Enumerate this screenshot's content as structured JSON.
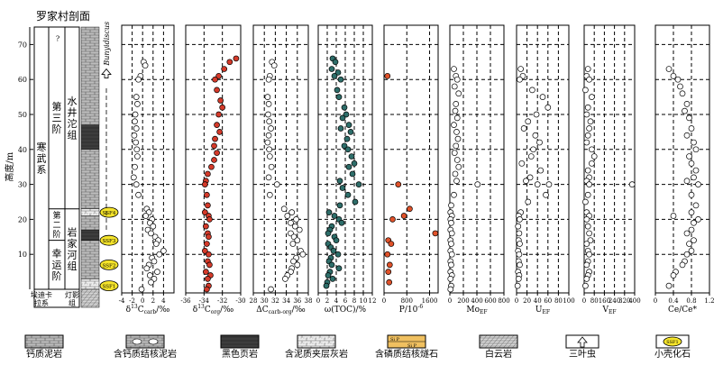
{
  "title": "罗家村剖面",
  "y_axis": {
    "label": "高度/m",
    "min": 0,
    "max": 75,
    "ticks": [
      10,
      20,
      30,
      40,
      50,
      60,
      70
    ]
  },
  "strat": {
    "series": [
      {
        "label": "寒武系",
        "from": 0,
        "to": 75
      }
    ],
    "stages": [
      {
        "label": "第三阶",
        "from": 23,
        "to": 75
      },
      {
        "label": "第二阶",
        "from": 14,
        "to": 23
      },
      {
        "label": "幸运阶",
        "from": 0,
        "to": 14
      }
    ],
    "formations": [
      {
        "label": "水井沱组",
        "from": 23,
        "to": 75
      },
      {
        "label": "岩家河组",
        "from": 0,
        "to": 23
      }
    ],
    "bottom_labels": {
      "system": "埃迪卡拉系",
      "formation": "灯影组"
    },
    "ssf_labels": [
      "SSF4",
      "SSF3",
      "SSF2",
      "SSF1"
    ],
    "biozone_label": "Bunyidiscus",
    "question_mark": "?"
  },
  "chart_data": [
    {
      "type": "scatter",
      "xlabel": "δ13Ccarb/‰",
      "xlim": [
        -4,
        6
      ],
      "xticks": [
        -4,
        -2,
        0,
        2,
        4
      ],
      "color": "#ffffff",
      "x": [
        0.2,
        0.5,
        -0.4,
        -0.8,
        -1.2,
        -1.0,
        -1.4,
        -1.5,
        -1.2,
        -1.6,
        -1.3,
        -1.1,
        -1.0,
        -1.5,
        -1.7,
        -1.2,
        -0.8,
        0.8,
        1.2,
        0.6,
        1.8,
        1.4,
        2.0,
        1.0,
        1.6,
        2.4,
        3.0,
        2.6,
        4.0,
        3.2,
        1.8,
        2.2,
        1.2,
        0.8,
        2.8,
        1.4,
        2.2,
        1.6,
        -0.2
      ],
      "y": [
        65,
        64,
        61,
        60,
        55,
        53,
        50,
        48,
        46,
        44,
        42,
        40,
        38,
        35,
        32,
        30,
        27,
        23,
        22,
        21,
        20,
        19,
        18,
        17,
        16,
        15,
        14,
        13,
        11,
        10,
        9,
        8,
        7,
        6,
        5,
        4,
        3,
        2,
        0
      ]
    },
    {
      "type": "scatter",
      "xlabel": "δ13Corg/‰",
      "xlim": [
        -36,
        -30
      ],
      "xticks": [
        -36,
        -34,
        -32,
        -30
      ],
      "color": "#d43a2a",
      "x": [
        -30.5,
        -31.2,
        -31.8,
        -32.4,
        -32.8,
        -32.6,
        -32.2,
        -32.0,
        -32.4,
        -32.6,
        -32.3,
        -32.8,
        -32.9,
        -32.6,
        -32.9,
        -33.2,
        -33.6,
        -33.8,
        -33.9,
        -33.7,
        -33.6,
        -33.9,
        -33.5,
        -33.4,
        -33.8,
        -33.6,
        -33.5,
        -33.7,
        -33.9,
        -33.5,
        -33.6,
        -33.4,
        -33.8,
        -33.3,
        -33.6,
        -33.5,
        -33.7
      ],
      "y": [
        66,
        65,
        63,
        61,
        60,
        57,
        54,
        52,
        50,
        47,
        45,
        43,
        41,
        39,
        37,
        35,
        33,
        31,
        30,
        27,
        24,
        22,
        21,
        20,
        18,
        16,
        15,
        13,
        11,
        10,
        8,
        7,
        5,
        4,
        3,
        1,
        0
      ]
    },
    {
      "type": "scatter",
      "xlabel": "ΔCcarb-org/‰",
      "xlim": [
        28,
        38
      ],
      "xticks": [
        28,
        30,
        32,
        34,
        36,
        38
      ],
      "color": "#ffffff",
      "x": [
        31.4,
        31.8,
        31.0,
        30.8,
        30.6,
        30.8,
        30.7,
        30.9,
        31.2,
        30.8,
        30.6,
        30.9,
        31.0,
        31.3,
        30.8,
        32.3,
        31.0,
        33.6,
        35.0,
        34.2,
        35.8,
        34.8,
        35.6,
        36.4,
        34.8,
        35.4,
        36.0,
        35.2,
        36.6,
        37.0,
        35.8,
        35.3,
        36.0,
        35.0,
        34.8,
        34.2,
        33.8,
        31.2
      ],
      "y": [
        65,
        64,
        61,
        60,
        55,
        53,
        50,
        48,
        46,
        44,
        42,
        40,
        38,
        35,
        32,
        30,
        27,
        23,
        22,
        21,
        20,
        19,
        18,
        17,
        16,
        15,
        14,
        13,
        11,
        10,
        9,
        8,
        7,
        6,
        5,
        4,
        3,
        0
      ]
    },
    {
      "type": "scatter",
      "xlabel": "ω(TOC)/%",
      "xlim": [
        0,
        12
      ],
      "xticks": [
        0,
        2,
        4,
        6,
        8,
        10,
        12
      ],
      "color": "#2e6e6a",
      "x": [
        3.2,
        3.8,
        3.0,
        4.4,
        3.6,
        5.0,
        4.2,
        4.6,
        5.8,
        6.2,
        5.4,
        6.8,
        5.0,
        7.2,
        6.4,
        5.8,
        6.6,
        7.4,
        8.0,
        6.8,
        7.6,
        4.8,
        9.0,
        5.4,
        6.6,
        8.2,
        4.8,
        2.4,
        3.6,
        4.6,
        5.2,
        3.0,
        2.6,
        2.2,
        3.6,
        4.0,
        2.2,
        2.8,
        3.4,
        4.4,
        2.8,
        2.4,
        3.0,
        4.6,
        2.6,
        2.2,
        3.2,
        2.0,
        1.8
      ],
      "y": [
        66,
        65,
        63,
        62,
        61,
        60,
        57,
        55,
        52,
        50,
        49,
        47,
        46,
        45,
        43,
        41,
        40,
        38,
        36,
        35,
        33,
        31,
        30,
        29,
        27,
        25,
        24,
        22,
        21,
        20,
        19,
        18,
        17,
        16,
        15,
        14,
        13,
        12,
        11,
        10,
        9,
        8,
        7,
        6,
        5,
        4,
        3,
        2,
        1
      ]
    },
    {
      "type": "scatter",
      "xlabel": "P/10-6",
      "xlim": [
        0,
        1900
      ],
      "xticks": [
        0,
        800,
        1600
      ],
      "color": "#e0522a",
      "x": [
        120,
        500,
        900,
        700,
        300,
        1800,
        150,
        250,
        120,
        200,
        150,
        180
      ],
      "y": [
        61,
        30,
        23,
        21,
        20,
        16,
        14,
        13,
        10,
        7,
        5,
        2
      ]
    },
    {
      "type": "scatter",
      "xlabel": "MoEF",
      "xlim": [
        0,
        800
      ],
      "xticks": [
        0,
        200,
        400,
        600,
        800
      ],
      "color": "#ffffff",
      "x": [
        60,
        90,
        110,
        70,
        130,
        90,
        80,
        110,
        60,
        100,
        120,
        90,
        70,
        110,
        130,
        80,
        100,
        410,
        60,
        20,
        10,
        30,
        10,
        20,
        10,
        30,
        10,
        20,
        10,
        30,
        10,
        20,
        10,
        30,
        10,
        20,
        10
      ],
      "y": [
        63,
        61,
        60,
        58,
        56,
        53,
        51,
        49,
        47,
        45,
        43,
        41,
        39,
        37,
        35,
        33,
        31,
        30,
        27,
        24,
        22,
        21,
        20,
        19,
        17,
        16,
        14,
        13,
        11,
        10,
        8,
        7,
        5,
        4,
        3,
        1,
        0
      ]
    },
    {
      "type": "scatter",
      "xlabel": "UEF",
      "xlim": [
        0,
        100
      ],
      "xticks": [
        0,
        20,
        40,
        60,
        80,
        100
      ],
      "color": "#ffffff",
      "x": [
        8,
        12,
        6,
        30,
        50,
        60,
        38,
        22,
        14,
        36,
        44,
        32,
        28,
        10,
        46,
        26,
        18,
        40,
        62,
        56,
        22,
        8,
        4,
        6,
        3,
        5,
        4,
        6,
        3,
        5,
        4,
        6,
        3,
        5,
        4,
        2
      ],
      "y": [
        63,
        61,
        60,
        57,
        55,
        52,
        50,
        48,
        46,
        44,
        42,
        40,
        38,
        36,
        34,
        32,
        31,
        30,
        30,
        27,
        25,
        22,
        21,
        20,
        18,
        16,
        14,
        13,
        11,
        10,
        8,
        7,
        5,
        4,
        3,
        1
      ]
    },
    {
      "type": "scatter",
      "xlabel": "VEF",
      "xlim": [
        0,
        400
      ],
      "xticks": [
        0,
        80,
        160,
        240,
        320,
        400
      ],
      "color": "#ffffff",
      "x": [
        30,
        20,
        40,
        10,
        60,
        30,
        20,
        50,
        40,
        30,
        20,
        60,
        80,
        60,
        30,
        40,
        20,
        40,
        380,
        30,
        10,
        20,
        40,
        20,
        30,
        40,
        50,
        20,
        30,
        40,
        30,
        20,
        40,
        30,
        20,
        10
      ],
      "y": [
        63,
        61,
        60,
        57,
        55,
        52,
        50,
        48,
        46,
        44,
        42,
        40,
        38,
        36,
        34,
        32,
        31,
        30,
        30,
        27,
        25,
        22,
        21,
        20,
        18,
        16,
        14,
        13,
        11,
        10,
        8,
        7,
        5,
        4,
        3,
        1
      ]
    },
    {
      "type": "scatter",
      "xlabel": "Ce/Ce*",
      "xlim": [
        0,
        1.2
      ],
      "xticks": [
        0,
        0.4,
        0.8,
        1.2
      ],
      "color": "#ffffff",
      "x": [
        0.3,
        0.4,
        0.5,
        0.55,
        0.6,
        0.7,
        0.65,
        0.75,
        0.8,
        0.7,
        0.85,
        0.9,
        0.75,
        0.8,
        0.9,
        0.85,
        0.7,
        0.95,
        0.8,
        0.4,
        0.9,
        0.8,
        0.95,
        0.85,
        0.8,
        0.7,
        0.85,
        0.75,
        0.8,
        0.7,
        0.65,
        0.6,
        0.45,
        0.4,
        0.3
      ],
      "y": [
        63,
        61,
        60,
        58,
        56,
        53,
        51,
        49,
        46,
        44,
        42,
        40,
        38,
        36,
        34,
        32,
        31,
        30,
        27,
        21,
        24,
        22,
        20,
        19,
        17,
        16,
        14,
        13,
        11,
        10,
        8,
        7,
        5,
        4,
        1
      ]
    }
  ],
  "legend": [
    {
      "label": "钙质泥岩",
      "icon": "calcareous-mudstone"
    },
    {
      "label": "含钙质结核泥岩",
      "icon": "nodular-mudstone"
    },
    {
      "label": "黑色页岩",
      "icon": "black-shale"
    },
    {
      "label": "含泥质夹层灰岩",
      "icon": "argillaceous-limestone"
    },
    {
      "label": "含磷质结核燧石",
      "icon": "phosphatic-chert"
    },
    {
      "label": "白云岩",
      "icon": "dolomite"
    },
    {
      "label": "三叶虫",
      "icon": "trilobite"
    },
    {
      "label": "小壳化石",
      "icon": "small-shelly-fossil"
    }
  ],
  "legend_chert_label": {
    "top": "Si P",
    "bottom": "Si P"
  }
}
